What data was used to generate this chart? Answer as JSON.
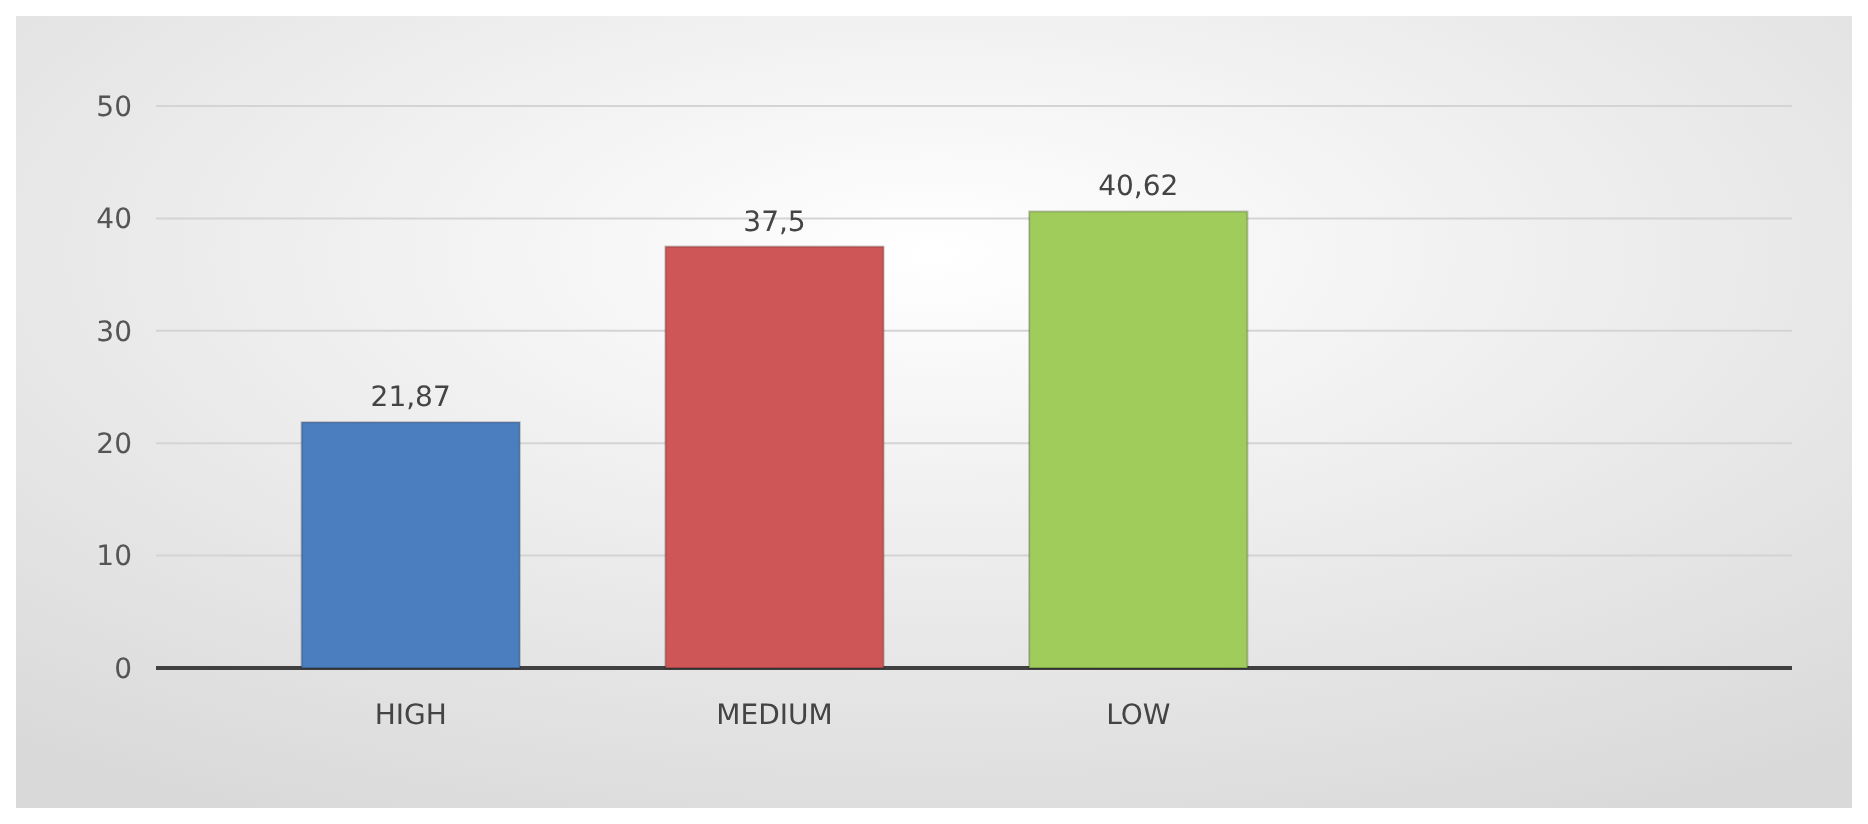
{
  "chart_data": {
    "type": "bar",
    "categories": [
      "HIGH",
      "MEDIUM",
      "LOW"
    ],
    "values": [
      21.87,
      37.5,
      40.62
    ],
    "colors": [
      "#4a7ebf",
      "#cf5656",
      "#9fcc5a"
    ],
    "value_labels": [
      "21,87",
      "37,5",
      "40,62"
    ],
    "ylim": [
      0,
      50
    ],
    "yticks": [
      0,
      10,
      20,
      30,
      40,
      50
    ],
    "grid": "y"
  }
}
